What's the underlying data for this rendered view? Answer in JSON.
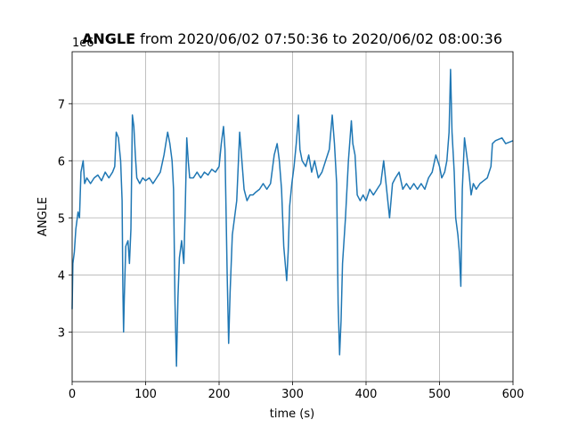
{
  "chart_data": {
    "type": "line",
    "title_parts": [
      "ANGLE",
      "from 2020/06/02 07:50:36 to 2020/06/02 08:00:36"
    ],
    "xlabel": "time (s)",
    "ylabel": "ANGLE",
    "y_offset_label": "1e6",
    "xlim": [
      0,
      600
    ],
    "ylim": [
      2.13,
      7.91
    ],
    "xticks": [
      0,
      100,
      200,
      300,
      400,
      500,
      600
    ],
    "yticks": [
      3,
      4,
      5,
      6,
      7
    ],
    "grid": true,
    "x": [
      0,
      1,
      3,
      5,
      8,
      10,
      12,
      15,
      17,
      20,
      25,
      30,
      35,
      40,
      45,
      50,
      55,
      58,
      60,
      63,
      66,
      68,
      69,
      70,
      71,
      73,
      76,
      78,
      80,
      82,
      84,
      86,
      88,
      92,
      96,
      100,
      105,
      110,
      115,
      120,
      125,
      130,
      133,
      136,
      138,
      140,
      142,
      144,
      146,
      149,
      152,
      154,
      156,
      158,
      160,
      165,
      170,
      175,
      180,
      185,
      190,
      195,
      200,
      203,
      206,
      208,
      211,
      213,
      215,
      218,
      221,
      224,
      228,
      231,
      234,
      238,
      242,
      246,
      250,
      255,
      260,
      265,
      270,
      275,
      279,
      282,
      285,
      288,
      290,
      292,
      294,
      296,
      299,
      302,
      305,
      308,
      310,
      313,
      318,
      322,
      326,
      330,
      335,
      340,
      345,
      350,
      354,
      357,
      360,
      362,
      364,
      366,
      368,
      372,
      376,
      380,
      382,
      385,
      388,
      392,
      396,
      400,
      405,
      410,
      415,
      420,
      424,
      428,
      432,
      436,
      440,
      445,
      450,
      455,
      460,
      465,
      470,
      475,
      480,
      485,
      490,
      495,
      500,
      503,
      507,
      510,
      513,
      515,
      517,
      520,
      522,
      525,
      527,
      529,
      531,
      534,
      537,
      540,
      543,
      546,
      550,
      555,
      560,
      565,
      570,
      572,
      576,
      585,
      590,
      600
    ],
    "series": [
      {
        "name": "ANGLE",
        "color": "#1f77b4",
        "values": [
          3.4,
          4.2,
          4.4,
          4.8,
          5.1,
          5.0,
          5.8,
          6.0,
          5.6,
          5.7,
          5.6,
          5.7,
          5.75,
          5.65,
          5.8,
          5.7,
          5.8,
          5.9,
          6.5,
          6.4,
          6.0,
          5.3,
          3.8,
          3.0,
          3.6,
          4.5,
          4.6,
          4.2,
          4.8,
          6.8,
          6.6,
          6.1,
          5.7,
          5.6,
          5.7,
          5.65,
          5.7,
          5.6,
          5.7,
          5.8,
          6.1,
          6.5,
          6.3,
          6.0,
          5.5,
          3.5,
          2.4,
          3.6,
          4.3,
          4.6,
          4.2,
          5.2,
          6.4,
          6.0,
          5.7,
          5.7,
          5.8,
          5.7,
          5.8,
          5.75,
          5.85,
          5.8,
          5.9,
          6.3,
          6.6,
          6.2,
          4.0,
          2.8,
          3.7,
          4.7,
          5.0,
          5.3,
          6.5,
          6.0,
          5.5,
          5.3,
          5.4,
          5.4,
          5.45,
          5.5,
          5.6,
          5.5,
          5.6,
          6.1,
          6.3,
          6.0,
          5.5,
          4.5,
          4.2,
          3.9,
          4.4,
          5.2,
          5.6,
          5.9,
          6.3,
          6.8,
          6.2,
          6.0,
          5.9,
          6.1,
          5.8,
          6.0,
          5.7,
          5.8,
          6.0,
          6.2,
          6.8,
          6.3,
          5.6,
          3.5,
          2.6,
          3.2,
          4.2,
          5.0,
          6.0,
          6.7,
          6.3,
          6.1,
          5.4,
          5.3,
          5.4,
          5.3,
          5.5,
          5.4,
          5.5,
          5.6,
          6.0,
          5.5,
          5.0,
          5.6,
          5.7,
          5.8,
          5.5,
          5.6,
          5.5,
          5.6,
          5.5,
          5.6,
          5.5,
          5.7,
          5.8,
          6.1,
          5.9,
          5.7,
          5.8,
          6.0,
          6.5,
          7.6,
          6.5,
          5.8,
          5.0,
          4.7,
          4.4,
          3.8,
          5.5,
          6.4,
          6.1,
          5.8,
          5.4,
          5.6,
          5.5,
          5.6,
          5.65,
          5.7,
          5.9,
          6.3,
          6.35,
          6.4,
          6.3,
          6.35
        ]
      }
    ]
  }
}
